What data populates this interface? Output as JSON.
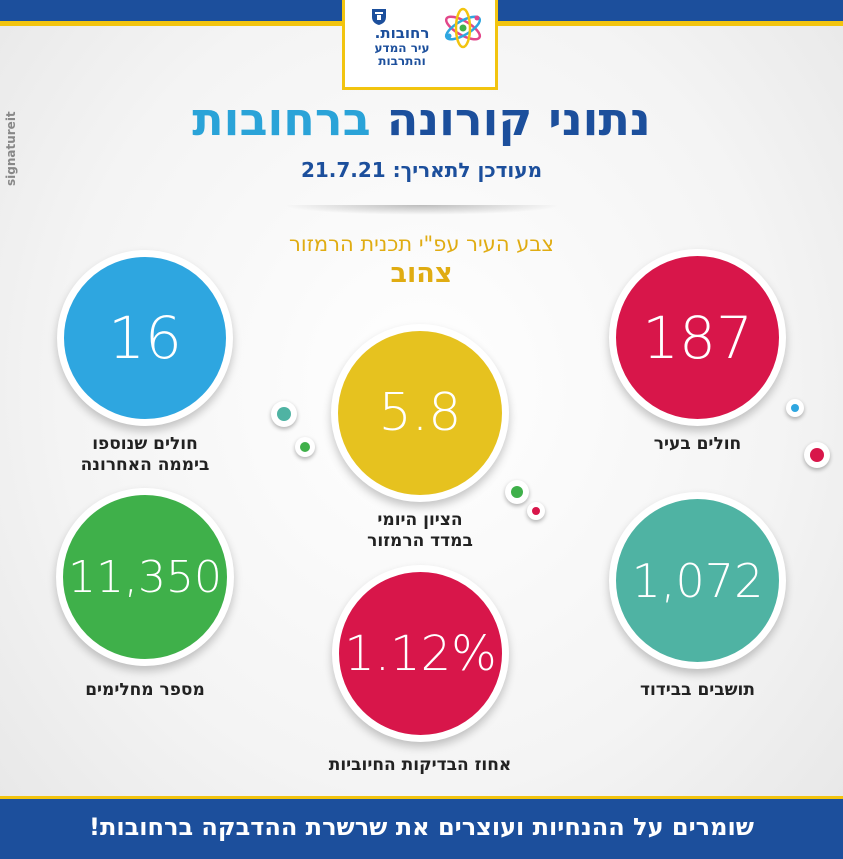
{
  "logo": {
    "city_name": "רחובות.",
    "slogan_line1": "עיר המדע",
    "slogan_line2": "והתרבות"
  },
  "side_credit": "signatureit",
  "header": {
    "title_part1": "נתוני קורונה",
    "title_part2": "ברחובות",
    "updated": "מעודכן לתאריך: 21.7.21"
  },
  "traffic_light": {
    "label": "צבע העיר עפ\"י תכנית הרמזור",
    "value": "צהוב"
  },
  "stats": {
    "new_patients": {
      "value": "16",
      "label_line1": "חולים שנוספו",
      "label_line2": "ביממה האחרונה"
    },
    "patients_in_city": {
      "value": "187",
      "label_line1": "חולים בעיר"
    },
    "daily_score": {
      "value": "5.8",
      "label_line1": "הציון היומי",
      "label_line2": "במדד הרמזור"
    },
    "recovered": {
      "value": "11,350",
      "label_line1": "מספר מחלימים"
    },
    "isolation": {
      "value": "1,072",
      "label_line1": "תושבים בבידוד"
    },
    "positive_rate": {
      "value": "1.12%",
      "label_line1": "אחוז הבדיקות החיוביות"
    }
  },
  "colors": {
    "brand_blue": "#1c4f9c",
    "light_blue": "#2ea6e0",
    "red": "#d8164a",
    "yellow": "#e6c21f",
    "green": "#3fb04a",
    "teal": "#4fb3a3",
    "accent_yellow": "#f2c40f"
  },
  "footer": {
    "message": "שומרים על ההנחיות ועוצרים את שרשרת ההדבקה ברחובות!"
  }
}
